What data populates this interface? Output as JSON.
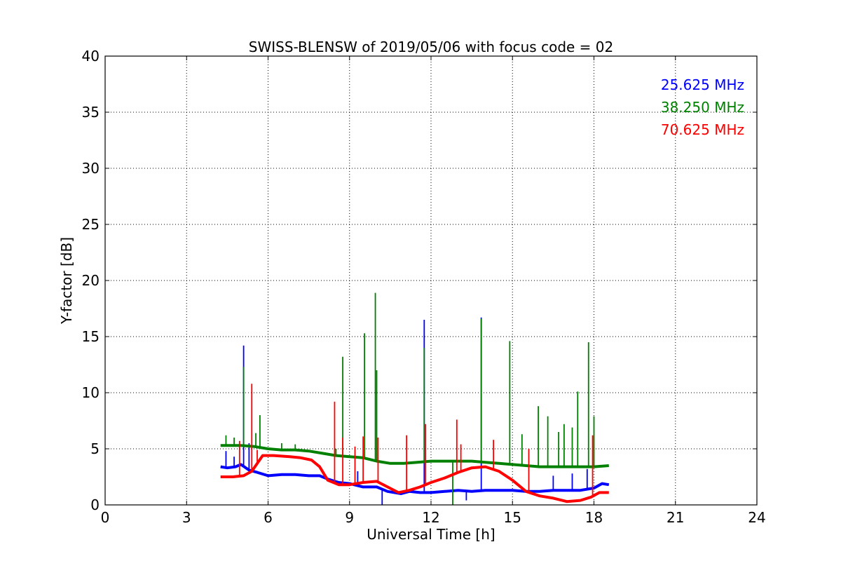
{
  "chart_data": {
    "type": "line",
    "title": "SWISS-BLENSW of 2019/05/06 with focus code = 02",
    "xlabel": "Universal Time [h]",
    "ylabel": "Y-factor [dB]",
    "xlim": [
      0,
      24
    ],
    "ylim": [
      0,
      40
    ],
    "xticks": [
      "0",
      "3",
      "6",
      "9",
      "12",
      "15",
      "18",
      "21",
      "24"
    ],
    "yticks": [
      "0",
      "5",
      "10",
      "15",
      "20",
      "25",
      "30",
      "35",
      "40"
    ],
    "grid": true,
    "legend_position": "top-right",
    "series": [
      {
        "name": "25.625 MHz",
        "color": "#0000ff",
        "points": [
          [
            4.25,
            3.4
          ],
          [
            4.5,
            3.3
          ],
          [
            4.8,
            3.4
          ],
          [
            5.0,
            3.6
          ],
          [
            5.3,
            3.1
          ],
          [
            5.6,
            2.9
          ],
          [
            6.0,
            2.6
          ],
          [
            6.5,
            2.7
          ],
          [
            7.0,
            2.7
          ],
          [
            7.5,
            2.6
          ],
          [
            7.9,
            2.6
          ],
          [
            8.2,
            2.3
          ],
          [
            8.6,
            2.0
          ],
          [
            9.0,
            1.9
          ],
          [
            9.5,
            1.6
          ],
          [
            10.0,
            1.6
          ],
          [
            10.4,
            1.2
          ],
          [
            10.9,
            1.0
          ],
          [
            11.2,
            1.2
          ],
          [
            11.6,
            1.1
          ],
          [
            12.0,
            1.1
          ],
          [
            12.5,
            1.2
          ],
          [
            13.0,
            1.3
          ],
          [
            13.5,
            1.2
          ],
          [
            14.0,
            1.3
          ],
          [
            14.5,
            1.3
          ],
          [
            15.0,
            1.3
          ],
          [
            15.5,
            1.2
          ],
          [
            16.0,
            1.2
          ],
          [
            16.5,
            1.3
          ],
          [
            17.0,
            1.3
          ],
          [
            17.5,
            1.3
          ],
          [
            18.0,
            1.5
          ],
          [
            18.3,
            1.9
          ],
          [
            18.55,
            1.8
          ]
        ],
        "spikes": [
          [
            4.45,
            4.8
          ],
          [
            4.75,
            4.3
          ],
          [
            5.1,
            14.2
          ],
          [
            5.3,
            5.5
          ],
          [
            9.3,
            3.0
          ],
          [
            10.2,
            0.0
          ],
          [
            11.75,
            16.5
          ],
          [
            13.3,
            0.4
          ],
          [
            13.85,
            16.7
          ],
          [
            16.5,
            2.6
          ],
          [
            17.2,
            2.8
          ],
          [
            17.75,
            3.2
          ]
        ]
      },
      {
        "name": "38.250 MHz",
        "color": "#008000",
        "points": [
          [
            4.25,
            5.3
          ],
          [
            4.6,
            5.3
          ],
          [
            5.0,
            5.3
          ],
          [
            5.5,
            5.2
          ],
          [
            6.0,
            5.0
          ],
          [
            6.5,
            4.9
          ],
          [
            7.0,
            4.9
          ],
          [
            7.5,
            4.8
          ],
          [
            8.0,
            4.6
          ],
          [
            8.5,
            4.4
          ],
          [
            9.0,
            4.3
          ],
          [
            9.5,
            4.2
          ],
          [
            10.0,
            3.9
          ],
          [
            10.5,
            3.7
          ],
          [
            11.0,
            3.7
          ],
          [
            11.5,
            3.8
          ],
          [
            12.0,
            3.9
          ],
          [
            12.5,
            3.9
          ],
          [
            13.0,
            3.9
          ],
          [
            13.5,
            3.9
          ],
          [
            14.0,
            3.8
          ],
          [
            14.5,
            3.7
          ],
          [
            15.0,
            3.6
          ],
          [
            15.5,
            3.5
          ],
          [
            16.0,
            3.4
          ],
          [
            16.5,
            3.4
          ],
          [
            17.0,
            3.4
          ],
          [
            17.5,
            3.4
          ],
          [
            18.0,
            3.4
          ],
          [
            18.55,
            3.5
          ]
        ],
        "spikes": [
          [
            4.45,
            6.2
          ],
          [
            4.75,
            6.0
          ],
          [
            5.1,
            12.3
          ],
          [
            5.55,
            6.4
          ],
          [
            5.7,
            8.0
          ],
          [
            6.5,
            5.5
          ],
          [
            7.0,
            5.4
          ],
          [
            8.5,
            5.0
          ],
          [
            8.75,
            13.2
          ],
          [
            9.55,
            15.3
          ],
          [
            9.95,
            18.9
          ],
          [
            10.0,
            12.0
          ],
          [
            11.75,
            14.0
          ],
          [
            12.8,
            0.0
          ],
          [
            13.85,
            16.6
          ],
          [
            14.9,
            14.6
          ],
          [
            15.35,
            6.3
          ],
          [
            15.95,
            8.8
          ],
          [
            16.3,
            7.9
          ],
          [
            16.7,
            6.5
          ],
          [
            16.9,
            7.2
          ],
          [
            17.2,
            6.9
          ],
          [
            17.4,
            10.1
          ],
          [
            17.8,
            14.5
          ],
          [
            18.0,
            7.9
          ]
        ]
      },
      {
        "name": "70.625 MHz",
        "color": "#ff0000",
        "points": [
          [
            4.25,
            2.5
          ],
          [
            4.7,
            2.5
          ],
          [
            5.1,
            2.6
          ],
          [
            5.4,
            3.0
          ],
          [
            5.8,
            4.4
          ],
          [
            6.2,
            4.4
          ],
          [
            6.8,
            4.3
          ],
          [
            7.2,
            4.2
          ],
          [
            7.6,
            4.0
          ],
          [
            7.9,
            3.4
          ],
          [
            8.2,
            2.2
          ],
          [
            8.6,
            1.8
          ],
          [
            9.0,
            1.8
          ],
          [
            9.5,
            2.0
          ],
          [
            10.0,
            2.1
          ],
          [
            10.4,
            1.6
          ],
          [
            10.8,
            1.1
          ],
          [
            11.2,
            1.3
          ],
          [
            11.6,
            1.6
          ],
          [
            12.0,
            2.0
          ],
          [
            12.5,
            2.4
          ],
          [
            13.0,
            2.9
          ],
          [
            13.5,
            3.3
          ],
          [
            14.0,
            3.4
          ],
          [
            14.5,
            3.0
          ],
          [
            15.0,
            2.2
          ],
          [
            15.5,
            1.2
          ],
          [
            16.0,
            0.8
          ],
          [
            16.5,
            0.6
          ],
          [
            17.0,
            0.3
          ],
          [
            17.5,
            0.4
          ],
          [
            17.9,
            0.7
          ],
          [
            18.2,
            1.1
          ],
          [
            18.55,
            1.1
          ]
        ],
        "spikes": [
          [
            4.95,
            5.7
          ],
          [
            5.4,
            10.8
          ],
          [
            5.6,
            4.9
          ],
          [
            8.45,
            9.2
          ],
          [
            8.75,
            6.0
          ],
          [
            9.2,
            5.2
          ],
          [
            9.5,
            6.1
          ],
          [
            10.05,
            6.0
          ],
          [
            11.1,
            6.2
          ],
          [
            11.8,
            7.2
          ],
          [
            12.95,
            7.6
          ],
          [
            13.1,
            5.4
          ],
          [
            14.3,
            5.8
          ],
          [
            15.6,
            5.0
          ],
          [
            17.95,
            6.2
          ]
        ]
      }
    ]
  }
}
